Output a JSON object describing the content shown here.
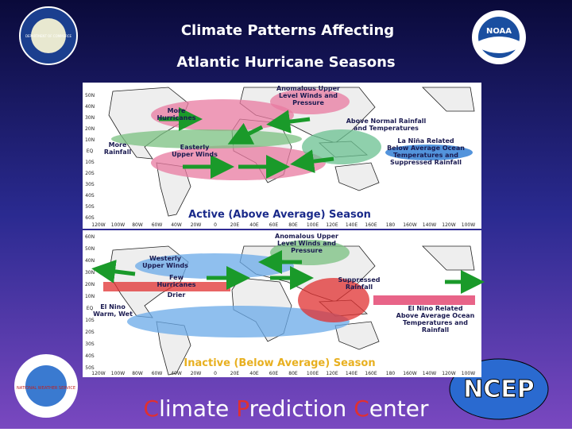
{
  "header": {
    "title_lines": [
      "Climate Patterns Affecting",
      "Atlantic Hurricane Seasons"
    ]
  },
  "logos": {
    "commerce": "DEPARTMENT OF COMMERCE",
    "noaa": "NOAA",
    "nws": "NATIONAL WEATHER SERVICE",
    "ncep": "NCEP"
  },
  "maps": [
    {
      "caption": "Active (Above Average) Season",
      "lat_labels": [
        "50N",
        "40N",
        "30N",
        "20N",
        "10N",
        "EQ",
        "10S",
        "20S",
        "30S",
        "40S",
        "50S",
        "60S"
      ],
      "lon_labels": [
        "120W",
        "100W",
        "80W",
        "60W",
        "40W",
        "20W",
        "0",
        "20E",
        "40E",
        "60E",
        "80E",
        "100E",
        "120E",
        "140E",
        "160E",
        "180",
        "160W",
        "140W",
        "120W",
        "100W"
      ],
      "labels": [
        {
          "lines": [
            "Anomalous Upper",
            "Level Winds and",
            "Pressure"
          ]
        },
        {
          "lines": [
            "More",
            "Hurricanes"
          ]
        },
        {
          "lines": [
            "More",
            "Rainfall"
          ]
        },
        {
          "lines": [
            "Easterly",
            "Upper Winds"
          ]
        },
        {
          "lines": [
            "Above Normal Rainfall",
            "and Temperatures"
          ]
        },
        {
          "lines": [
            "La Niña Related",
            "Below Average Ocean",
            "Temperatures and",
            "Suppressed Rainfall"
          ]
        }
      ]
    },
    {
      "caption": "Inactive (Below Average) Season",
      "lat_labels": [
        "60N",
        "50N",
        "40N",
        "30N",
        "20N",
        "10N",
        "EQ",
        "10S",
        "20S",
        "30S",
        "40S",
        "50S"
      ],
      "lon_labels": [
        "120W",
        "100W",
        "80W",
        "60W",
        "40W",
        "20W",
        "0",
        "20E",
        "40E",
        "60E",
        "80E",
        "100E",
        "120E",
        "140E",
        "160E",
        "180",
        "160W",
        "140W",
        "120W",
        "100W"
      ],
      "labels": [
        {
          "lines": [
            "Anomalous Upper",
            "Level Winds and",
            "Pressure"
          ]
        },
        {
          "lines": [
            "Westerly",
            "Upper Winds"
          ]
        },
        {
          "lines": [
            "Few",
            "Hurricanes"
          ]
        },
        {
          "lines": [
            "Drier"
          ]
        },
        {
          "lines": [
            "El Nino",
            "Warm, Wet"
          ]
        },
        {
          "lines": [
            "Suppressed",
            "Rainfall"
          ]
        },
        {
          "lines": [
            "El Nino Related",
            "Above Average Ocean",
            "Temperatures and",
            "Rainfall"
          ]
        }
      ]
    }
  ],
  "footer": {
    "parts": [
      "C",
      "limate ",
      "P",
      "rediction ",
      "C",
      "enter"
    ]
  }
}
